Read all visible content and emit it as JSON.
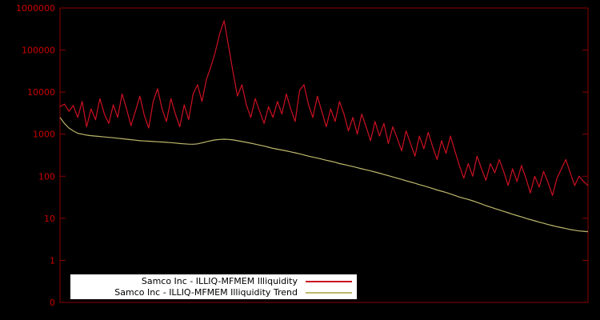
{
  "chart": {
    "background": "#000000",
    "frame_color": "#8b0000",
    "tick_label_color": "#cc0000",
    "legend": {
      "background": "#ffffff",
      "text_color": "#000000"
    }
  },
  "chart_data": {
    "type": "line",
    "title": "",
    "xlabel": "",
    "ylabel": "",
    "y_scale": "log",
    "y_range_log10": [
      -1,
      6
    ],
    "y_tick_labels": [
      "1000000",
      "100000",
      "10000",
      "1000",
      "100",
      "10",
      "1",
      "0"
    ],
    "x_axis": {
      "labels_visible": false
    },
    "grid": false,
    "legend_position": "bottom-center-inside",
    "series": [
      {
        "name": "Samco Inc - ILLIQ-MFMEM Illiquidity",
        "color": "#cc1122",
        "values": [
          4500,
          5200,
          3500,
          4800,
          2500,
          6000,
          1500,
          4000,
          2200,
          7000,
          3000,
          1800,
          5000,
          2500,
          9000,
          4000,
          1600,
          3500,
          8000,
          2800,
          1400,
          6000,
          12000,
          4000,
          2000,
          7000,
          3000,
          1500,
          5000,
          2200,
          9000,
          15000,
          6000,
          20000,
          40000,
          90000,
          250000,
          500000,
          120000,
          30000,
          8000,
          15000,
          5000,
          2500,
          7000,
          3500,
          1800,
          4500,
          2500,
          6000,
          3000,
          9000,
          4000,
          2000,
          11000,
          15000,
          5000,
          2500,
          8000,
          3500,
          1500,
          4000,
          2000,
          6000,
          3000,
          1200,
          2500,
          1000,
          3000,
          1500,
          700,
          2000,
          900,
          1800,
          600,
          1500,
          800,
          400,
          1200,
          600,
          300,
          900,
          450,
          1100,
          500,
          250,
          700,
          350,
          900,
          400,
          180,
          90,
          200,
          100,
          300,
          150,
          80,
          200,
          120,
          250,
          130,
          60,
          150,
          75,
          180,
          90,
          40,
          100,
          55,
          130,
          70,
          35,
          90,
          150,
          250,
          120,
          60,
          100,
          75,
          60
        ]
      },
      {
        "name": "Samco Inc - ILLIQ-MFMEM Illiquidity Trend",
        "color": "#bdb76b",
        "values": [
          2500,
          1800,
          1400,
          1200,
          1050,
          1000,
          950,
          920,
          900,
          880,
          860,
          840,
          820,
          800,
          780,
          760,
          740,
          720,
          700,
          690,
          680,
          670,
          660,
          650,
          640,
          630,
          615,
          600,
          590,
          580,
          575,
          590,
          620,
          660,
          700,
          730,
          750,
          760,
          750,
          730,
          700,
          670,
          640,
          610,
          580,
          550,
          520,
          490,
          460,
          440,
          420,
          400,
          380,
          360,
          340,
          320,
          300,
          285,
          270,
          255,
          240,
          228,
          215,
          200,
          190,
          180,
          170,
          160,
          150,
          142,
          134,
          126,
          118,
          110,
          103,
          96,
          90,
          84,
          78,
          73,
          68,
          63,
          59,
          55,
          51,
          47,
          44,
          41,
          38,
          35,
          32,
          30,
          28,
          26,
          24,
          22,
          20,
          18.5,
          17,
          15.8,
          14.6,
          13.5,
          12.5,
          11.6,
          10.8,
          10,
          9.3,
          8.7,
          8.1,
          7.6,
          7.1,
          6.7,
          6.3,
          6.0,
          5.7,
          5.4,
          5.2,
          5.0,
          4.9,
          4.8
        ]
      }
    ]
  }
}
